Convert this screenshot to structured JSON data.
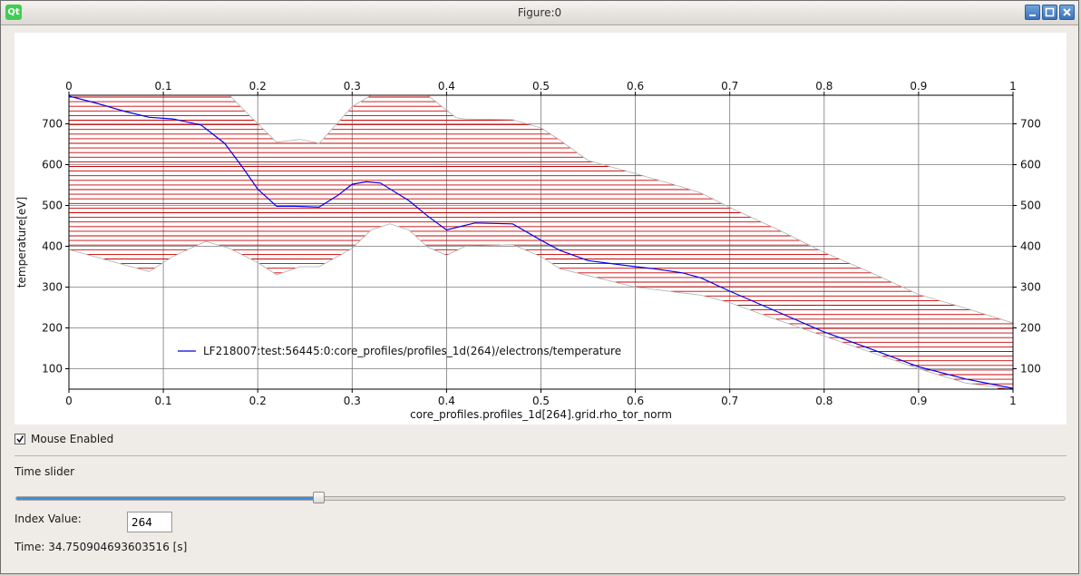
{
  "window": {
    "title": "Figure:0",
    "logo": "Qt"
  },
  "chart_data": {
    "type": "line",
    "xlabel": "core_profiles.profiles_1d[264].grid.rho_tor_norm",
    "ylabel": "temperature[eV]",
    "xlim": [
      0,
      1
    ],
    "ylim": [
      50,
      770
    ],
    "xticks": [
      "0",
      "0.1",
      "0.2",
      "0.3",
      "0.4",
      "0.5",
      "0.6",
      "0.7",
      "0.8",
      "0.9",
      "1"
    ],
    "yticks": [
      "100",
      "200",
      "300",
      "400",
      "500",
      "600",
      "700"
    ],
    "grid": true,
    "legend_placement": "lower-left",
    "series": [
      {
        "name": "LF218007:test:56445:0:core_profiles/profiles_1d(264)/electrons/temperature",
        "color": "#0000ee",
        "x": [
          0,
          0.03,
          0.06,
          0.085,
          0.11,
          0.14,
          0.165,
          0.185,
          0.2,
          0.22,
          0.24,
          0.265,
          0.285,
          0.3,
          0.315,
          0.33,
          0.36,
          0.38,
          0.4,
          0.43,
          0.47,
          0.5,
          0.52,
          0.55,
          0.6,
          0.62,
          0.65,
          0.67,
          0.7,
          0.75,
          0.8,
          0.85,
          0.9,
          0.95,
          1.0
        ],
        "y": [
          768,
          750,
          730,
          716,
          712,
          697,
          652,
          590,
          540,
          498,
          498,
          496,
          525,
          552,
          558,
          555,
          512,
          474,
          440,
          457,
          455,
          415,
          390,
          365,
          350,
          345,
          335,
          322,
          290,
          240,
          190,
          148,
          105,
          75,
          52
        ]
      }
    ],
    "band": {
      "color": "#cc0000",
      "upper": [
        [
          0,
          770
        ],
        [
          0.15,
          770
        ],
        [
          0.17,
          770
        ],
        [
          0.2,
          700
        ],
        [
          0.22,
          655
        ],
        [
          0.245,
          662
        ],
        [
          0.265,
          652
        ],
        [
          0.3,
          742
        ],
        [
          0.32,
          770
        ],
        [
          0.38,
          770
        ],
        [
          0.41,
          715
        ],
        [
          0.42,
          712
        ],
        [
          0.47,
          710
        ],
        [
          0.5,
          690
        ],
        [
          0.52,
          660
        ],
        [
          0.55,
          610
        ],
        [
          0.6,
          578
        ],
        [
          0.65,
          545
        ],
        [
          0.67,
          530
        ],
        [
          0.7,
          495
        ],
        [
          0.75,
          442
        ],
        [
          0.8,
          385
        ],
        [
          0.85,
          335
        ],
        [
          0.9,
          282
        ],
        [
          0.95,
          248
        ],
        [
          1.0,
          212
        ]
      ],
      "lower": [
        [
          0,
          392
        ],
        [
          0.05,
          360
        ],
        [
          0.085,
          338
        ],
        [
          0.11,
          375
        ],
        [
          0.145,
          412
        ],
        [
          0.17,
          395
        ],
        [
          0.2,
          360
        ],
        [
          0.22,
          330
        ],
        [
          0.245,
          350
        ],
        [
          0.265,
          350
        ],
        [
          0.3,
          395
        ],
        [
          0.32,
          440
        ],
        [
          0.34,
          455
        ],
        [
          0.36,
          440
        ],
        [
          0.38,
          398
        ],
        [
          0.4,
          378
        ],
        [
          0.42,
          400
        ],
        [
          0.47,
          404
        ],
        [
          0.5,
          375
        ],
        [
          0.52,
          345
        ],
        [
          0.6,
          300
        ],
        [
          0.67,
          280
        ],
        [
          0.7,
          262
        ],
        [
          0.75,
          220
        ],
        [
          0.8,
          180
        ],
        [
          0.85,
          140
        ],
        [
          0.9,
          100
        ],
        [
          0.95,
          65
        ],
        [
          1.0,
          45
        ]
      ]
    }
  },
  "controls": {
    "mouse_enabled_label": "Mouse Enabled",
    "mouse_enabled": true,
    "time_slider_label": "Time slider",
    "slider_fraction": 0.288,
    "index_label": "Index Value:",
    "index_value": "264",
    "time_text": "Time: 34.750904693603516 [s]"
  }
}
